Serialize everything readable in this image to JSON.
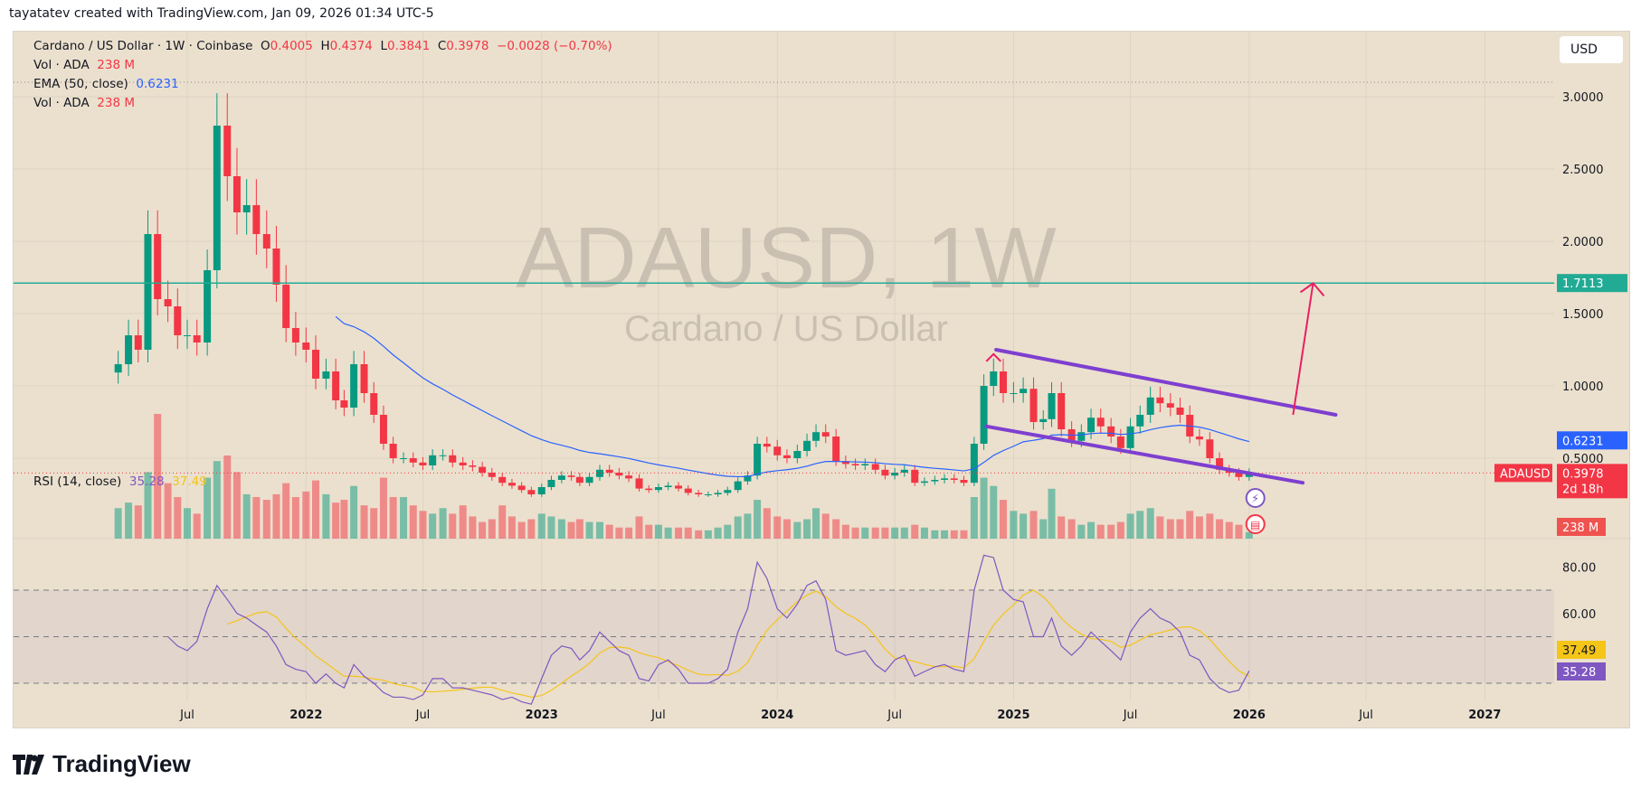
{
  "credit": "tayatatev created with TradingView.com, Jan 09, 2026 01:34 UTC-5",
  "legend": {
    "symbol": "Cardano / US Dollar · 1W · Coinbase",
    "o_label": "O",
    "o": "0.4005",
    "h_label": "H",
    "h": "0.4374",
    "l_label": "L",
    "l": "0.3841",
    "c_label": "C",
    "c": "0.3978",
    "change": "−0.0028 (−0.70%)",
    "vol_label": "Vol · ADA",
    "vol": "238 M",
    "ema_label": "EMA (50, close)",
    "ema": "0.6231",
    "vol2_label": "Vol · ADA",
    "vol2": "238 M",
    "rsi_label": "RSI (14, close)",
    "rsi": "35.28",
    "rsi_ma": "37.49"
  },
  "currency_button": "USD",
  "watermark": {
    "title": "ADAUSD, 1W",
    "subtitle": "Cardano / US Dollar"
  },
  "logo_text": "TradingView",
  "colors": {
    "up": "#089981",
    "down": "#f23645",
    "ema": "#2962ff",
    "level": "#22ab94",
    "channel": "#7e3fd0",
    "arrow": "#e91e63",
    "rsi": "#7e57c2",
    "rsi_ma": "#f5c518",
    "background": "#ebe0cd"
  },
  "chart_data": {
    "type": "candlestick",
    "symbol": "ADAUSD",
    "interval": "1W",
    "price_axis": {
      "ticks": [
        "3.0000",
        "2.5000",
        "2.0000",
        "1.5000",
        "1.0000",
        "0.5000"
      ],
      "range": [
        0,
        3.1
      ],
      "scale": "linear"
    },
    "time_axis": {
      "ticks": [
        "Jul",
        "2022",
        "Jul",
        "2023",
        "Jul",
        "2024",
        "Jul",
        "2025",
        "Jul",
        "2026",
        "Jul",
        "2027"
      ],
      "tick_dates": [
        "2021-07-01",
        "2022-01-01",
        "2022-07-01",
        "2023-01-01",
        "2023-07-01",
        "2024-01-01",
        "2024-07-01",
        "2025-01-01",
        "2025-07-01",
        "2026-01-01",
        "2026-07-01",
        "2027-01-01"
      ]
    },
    "grid": true,
    "start_date": "2021-03-16",
    "closes_semi_monthly": [
      1.15,
      1.35,
      1.25,
      2.05,
      1.6,
      1.55,
      1.35,
      1.35,
      1.3,
      1.8,
      2.8,
      2.45,
      2.2,
      2.25,
      2.05,
      1.95,
      1.7,
      1.4,
      1.3,
      1.25,
      1.05,
      1.1,
      0.9,
      0.85,
      1.15,
      0.95,
      0.8,
      0.6,
      0.5,
      0.5,
      0.47,
      0.45,
      0.52,
      0.52,
      0.47,
      0.45,
      0.44,
      0.4,
      0.37,
      0.33,
      0.31,
      0.28,
      0.25,
      0.3,
      0.35,
      0.38,
      0.37,
      0.33,
      0.37,
      0.42,
      0.4,
      0.38,
      0.36,
      0.29,
      0.28,
      0.3,
      0.31,
      0.29,
      0.26,
      0.25,
      0.25,
      0.26,
      0.28,
      0.34,
      0.38,
      0.6,
      0.58,
      0.52,
      0.5,
      0.55,
      0.62,
      0.68,
      0.65,
      0.48,
      0.46,
      0.45,
      0.46,
      0.42,
      0.38,
      0.4,
      0.42,
      0.33,
      0.34,
      0.35,
      0.36,
      0.35,
      0.33,
      0.6,
      1.0,
      1.1,
      0.95,
      0.95,
      0.98,
      0.75,
      0.77,
      0.95,
      0.7,
      0.62,
      0.68,
      0.78,
      0.72,
      0.65,
      0.57,
      0.72,
      0.8,
      0.92,
      0.88,
      0.85,
      0.8,
      0.65,
      0.63,
      0.5,
      0.42,
      0.4,
      0.37,
      0.3978
    ],
    "volume_M": [
      1100,
      1300,
      1200,
      2400,
      4500,
      2000,
      1500,
      1100,
      900,
      2200,
      2800,
      3000,
      2400,
      1600,
      1500,
      1400,
      1600,
      2000,
      1500,
      1700,
      2100,
      1600,
      1300,
      1400,
      1900,
      1200,
      1100,
      2200,
      1500,
      1500,
      1200,
      1000,
      900,
      1100,
      900,
      1200,
      800,
      600,
      700,
      1200,
      800,
      600,
      700,
      900,
      800,
      700,
      600,
      700,
      600,
      600,
      500,
      400,
      400,
      800,
      500,
      500,
      400,
      400,
      400,
      300,
      300,
      400,
      500,
      800,
      900,
      1400,
      1100,
      800,
      700,
      600,
      700,
      1100,
      900,
      700,
      500,
      400,
      400,
      400,
      400,
      400,
      400,
      500,
      400,
      300,
      300,
      300,
      300,
      1500,
      2200,
      1900,
      1400,
      1000,
      900,
      1000,
      700,
      1800,
      800,
      700,
      500,
      600,
      500,
      500,
      600,
      900,
      1000,
      1100,
      800,
      700,
      700,
      1000,
      800,
      900,
      700,
      600,
      500,
      238
    ],
    "ema": {
      "period": 50,
      "last": 0.6231
    },
    "level_line": 1.7113,
    "last_price": 0.3978,
    "countdown": "2d 18h",
    "last_volume": "238 M",
    "ath_line": 3.1,
    "channel": {
      "upper": [
        [
          "2024-12-05",
          1.25
        ],
        [
          "2026-05-15",
          0.8
        ]
      ],
      "lower": [
        [
          "2024-11-20",
          0.72
        ],
        [
          "2026-03-25",
          0.33
        ]
      ]
    },
    "arrow": [
      [
        "2026-03-10",
        0.8
      ],
      [
        "2026-04-10",
        1.71
      ]
    ],
    "rsi": {
      "period": 14,
      "bands": [
        70,
        50,
        30
      ],
      "ticks": [
        "80.00",
        "60.00"
      ],
      "start_date": "2021-06-01",
      "values": [
        50,
        46,
        44,
        48,
        62,
        72,
        66,
        60,
        58,
        55,
        52,
        46,
        38,
        36,
        35,
        30,
        34,
        30,
        28,
        38,
        33,
        30,
        26,
        24,
        24,
        23,
        25,
        32,
        32,
        28,
        28,
        27,
        26,
        25,
        23,
        24,
        22,
        21,
        32,
        42,
        46,
        45,
        40,
        44,
        52,
        48,
        44,
        42,
        32,
        31,
        38,
        40,
        36,
        30,
        30,
        30,
        32,
        36,
        52,
        62,
        82,
        75,
        62,
        58,
        64,
        72,
        74,
        66,
        44,
        42,
        43,
        44,
        38,
        35,
        40,
        42,
        33,
        35,
        37,
        38,
        36,
        35,
        70,
        85,
        84,
        70,
        66,
        65,
        50,
        50,
        58,
        46,
        42,
        46,
        52,
        48,
        44,
        40,
        52,
        58,
        62,
        58,
        56,
        52,
        42,
        40,
        32,
        28,
        26,
        27,
        35.28
      ],
      "last": "35.28",
      "ma_last": "37.49"
    }
  }
}
